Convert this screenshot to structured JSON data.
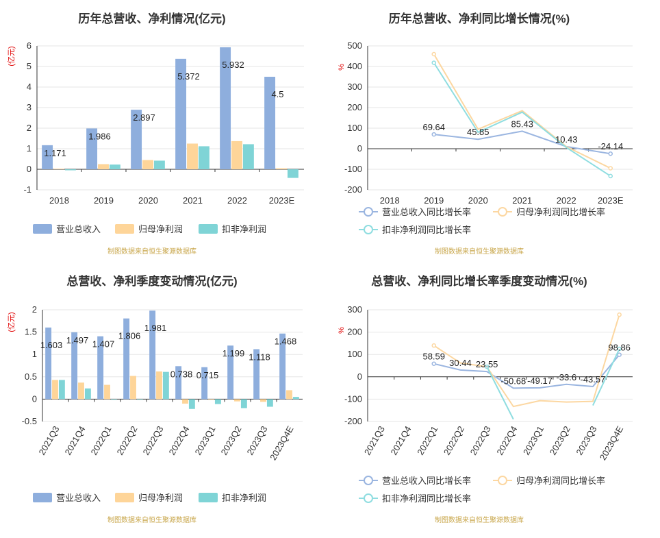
{
  "source": "制图数据来自恒生聚源数据库",
  "colors": {
    "revenue": "#8eaedd",
    "net": "#fed599",
    "deducted": "#7fd4d6",
    "revenue_line": "#9ab5e0",
    "net_line": "#fcd7a1",
    "deducted_line": "#8fdde0"
  },
  "chart_data": [
    {
      "type": "bar",
      "title": "历年总营收、净利情况(亿元)",
      "ylabel": "(亿元)",
      "ylim": [
        -1,
        6
      ],
      "yticks": [
        -1,
        0,
        1,
        2,
        3,
        4,
        5,
        6
      ],
      "categories": [
        "2018",
        "2019",
        "2020",
        "2021",
        "2022",
        "2023E"
      ],
      "series": [
        {
          "name": "营业总收入",
          "values": [
            1.171,
            1.986,
            2.897,
            5.372,
            5.932,
            4.5
          ]
        },
        {
          "name": "归母净利润",
          "values": [
            0.03,
            0.25,
            0.45,
            1.25,
            1.37,
            0.05
          ]
        },
        {
          "name": "扣非净利润",
          "values": [
            -0.05,
            0.23,
            0.42,
            1.12,
            1.22,
            -0.42
          ]
        }
      ],
      "data_labels": [
        "1.171",
        "1.986",
        "2.897",
        "5.372",
        "5.932",
        "4.5"
      ],
      "legend": "bottom"
    },
    {
      "type": "line",
      "title": "历年总营收、净利同比增长情况(%)",
      "ylabel": "%",
      "ylim": [
        -200,
        500
      ],
      "yticks": [
        -200,
        -100,
        0,
        100,
        200,
        300,
        400,
        500
      ],
      "categories": [
        "2018",
        "2019",
        "2020",
        "2021",
        "2022",
        "2023E"
      ],
      "series": [
        {
          "name": "营业总收入同比增长率",
          "values": [
            null,
            69.64,
            45.85,
            85.43,
            10.43,
            -24.14
          ]
        },
        {
          "name": "归母净利润同比增长率",
          "values": [
            null,
            460,
            95,
            185,
            10,
            -95
          ]
        },
        {
          "name": "扣非净利润同比增长率",
          "values": [
            null,
            418,
            80,
            178,
            6,
            -133
          ]
        }
      ],
      "data_labels": [
        "",
        "69.64",
        "45.85",
        "85.43",
        "10.43",
        "-24.14"
      ],
      "legend": "bottom"
    },
    {
      "type": "bar",
      "title": "总营收、净利季度变动情况(亿元)",
      "ylabel": "(亿元)",
      "ylim": [
        -0.5,
        2
      ],
      "yticks": [
        -0.5,
        0,
        0.5,
        1,
        1.5,
        2
      ],
      "categories": [
        "2021Q3",
        "2021Q4",
        "2022Q1",
        "2022Q2",
        "2022Q3",
        "2022Q4",
        "2023Q1",
        "2023Q2",
        "2023Q3",
        "2023Q4E"
      ],
      "series": [
        {
          "name": "营业总收入",
          "values": [
            1.603,
            1.497,
            1.407,
            1.806,
            1.981,
            0.738,
            0.715,
            1.199,
            1.118,
            1.468
          ]
        },
        {
          "name": "归母净利润",
          "values": [
            0.43,
            0.37,
            0.32,
            0.52,
            0.62,
            -0.1,
            0.0,
            -0.05,
            -0.06,
            0.2
          ]
        },
        {
          "name": "扣非净利润",
          "values": [
            0.43,
            0.24,
            0.0,
            0.0,
            0.61,
            -0.22,
            -0.11,
            -0.2,
            -0.17,
            0.05
          ]
        }
      ],
      "data_labels": [
        "1.603",
        "1.497",
        "1.407",
        "1.806",
        "1.981",
        "0.738",
        "0.715",
        "1.199",
        "1.118",
        "1.468"
      ],
      "legend": "bottom"
    },
    {
      "type": "line",
      "title": "总营收、净利同比增长率季度变动情况(%)",
      "ylabel": "%",
      "ylim": [
        -200,
        300
      ],
      "yticks": [
        -200,
        -100,
        0,
        100,
        200,
        300
      ],
      "categories": [
        "2021Q3",
        "2021Q4",
        "2022Q1",
        "2022Q2",
        "2022Q3",
        "2022Q4",
        "2023Q1",
        "2023Q2",
        "2023Q3",
        "2023Q4E"
      ],
      "series": [
        {
          "name": "营业总收入同比增长率",
          "values": [
            null,
            null,
            58.59,
            30.44,
            23.55,
            -50.68,
            -49.17,
            -33.6,
            -43.57,
            98.86
          ]
        },
        {
          "name": "归母净利润同比增长率",
          "values": [
            null,
            null,
            140,
            62,
            45,
            -133,
            -107,
            -113,
            -110,
            278
          ]
        },
        {
          "name": "扣非净利润同比增长率",
          "values": [
            null,
            null,
            null,
            null,
            45,
            -190,
            null,
            null,
            -128,
            125
          ]
        }
      ],
      "data_labels": [
        "",
        "",
        "58.59",
        "30.44",
        "23.55",
        "-50.68",
        "-49.17",
        "-33.6",
        "-43.57",
        "98.86"
      ],
      "legend": "bottom"
    }
  ]
}
